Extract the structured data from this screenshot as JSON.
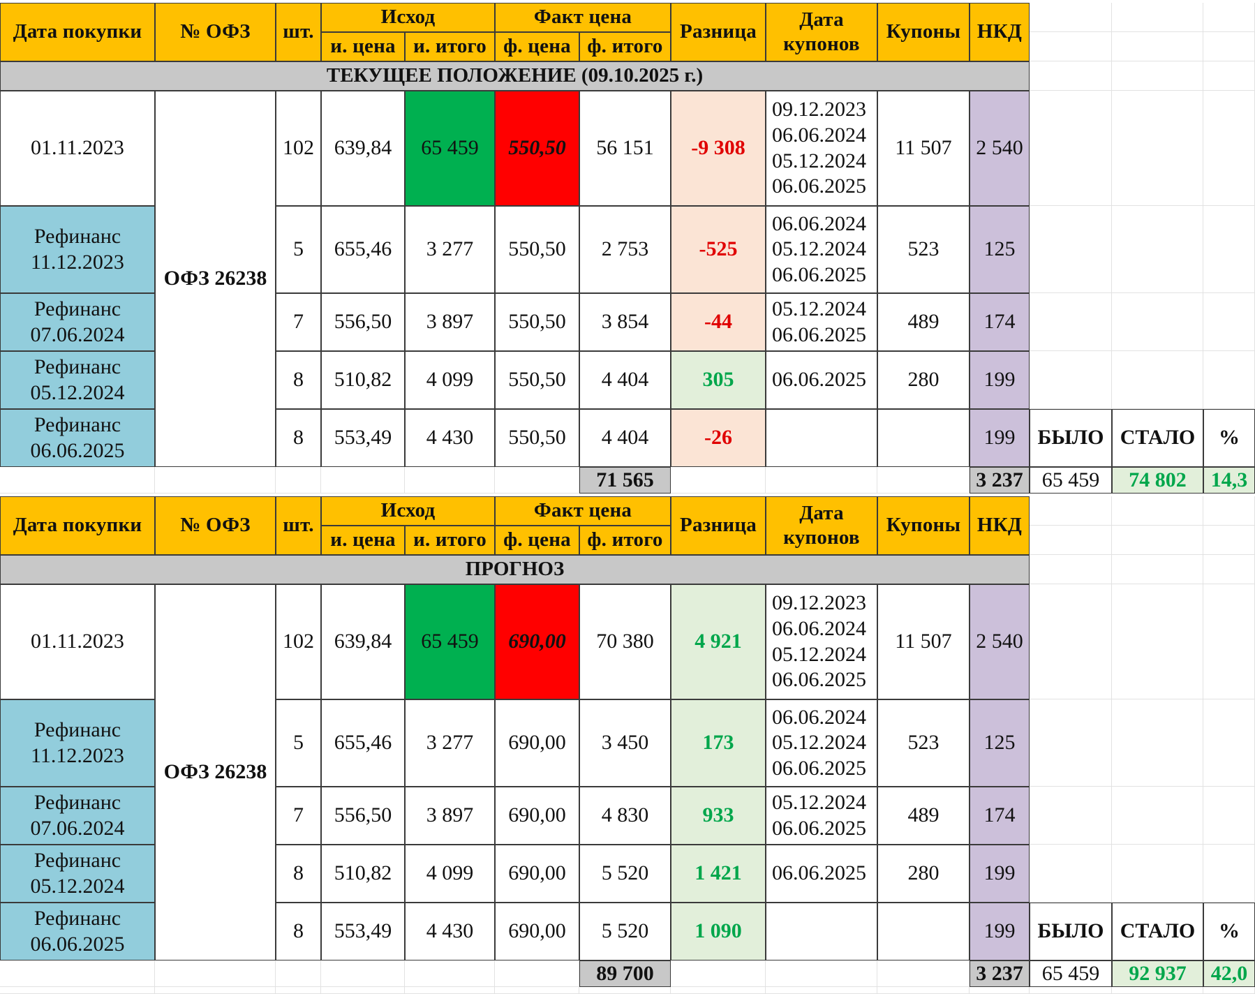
{
  "headers": {
    "date": "Дата покупки",
    "ofz": "№ ОФЗ",
    "qty": "шт.",
    "ish": "Исход",
    "fakt": "Факт цена",
    "raz": "Разница",
    "datakup": "Дата\nкупонов",
    "kup": "Купоны",
    "nkd": "НКД",
    "iprice": "и. цена",
    "itotal": "и. итого",
    "fprice": "ф. цена",
    "ftotal": "ф. итого"
  },
  "ofz_name": "ОФЗ 26238",
  "summary_labels": {
    "was": "БЫЛО",
    "now": "СТАЛО",
    "pct": "%"
  },
  "sections": [
    {
      "title": "ТЕКУЩЕЕ ПОЛОЖЕНИЕ (09.10.2025 г.)",
      "rows": [
        {
          "date": "01.11.2023",
          "qty": "102",
          "iprice": "639,84",
          "itotal": "65 459",
          "fprice": "550,50",
          "ftotal": "56 151",
          "diff": "-9 308",
          "coupons": "09.12.2023\n06.06.2024\n05.12.2024\n06.06.2025",
          "kup": "11 507",
          "nkd": "2 540"
        },
        {
          "date": "Рефинанс\n11.12.2023",
          "qty": "5",
          "iprice": "655,46",
          "itotal": "3 277",
          "fprice": "550,50",
          "ftotal": "2 753",
          "diff": "-525",
          "coupons": "06.06.2024\n05.12.2024\n06.06.2025",
          "kup": "523",
          "nkd": "125"
        },
        {
          "date": "Рефинанс\n07.06.2024",
          "qty": "7",
          "iprice": "556,50",
          "itotal": "3 897",
          "fprice": "550,50",
          "ftotal": "3 854",
          "diff": "-44",
          "coupons": "05.12.2024\n06.06.2025",
          "kup": "489",
          "nkd": "174"
        },
        {
          "date": "Рефинанс\n05.12.2024",
          "qty": "8",
          "iprice": "510,82",
          "itotal": "4 099",
          "fprice": "550,50",
          "ftotal": "4 404",
          "diff": "305",
          "coupons": "06.06.2025",
          "kup": "280",
          "nkd": "199"
        },
        {
          "date": "Рефинанс\n06.06.2025",
          "qty": "8",
          "iprice": "553,49",
          "itotal": "4 430",
          "fprice": "550,50",
          "ftotal": "4 404",
          "diff": "-26",
          "coupons": "",
          "kup": "",
          "nkd": "199"
        }
      ],
      "total": "71 565",
      "nkd_total": "3 237",
      "was": "65 459",
      "now": "74 802",
      "pct": "14,3"
    },
    {
      "title": "ПРОГНОЗ",
      "rows": [
        {
          "date": "01.11.2023",
          "qty": "102",
          "iprice": "639,84",
          "itotal": "65 459",
          "fprice": "690,00",
          "ftotal": "70 380",
          "diff": "4 921",
          "coupons": "09.12.2023\n06.06.2024\n05.12.2024\n06.06.2025",
          "kup": "11 507",
          "nkd": "2 540"
        },
        {
          "date": "Рефинанс\n11.12.2023",
          "qty": "5",
          "iprice": "655,46",
          "itotal": "3 277",
          "fprice": "690,00",
          "ftotal": "3 450",
          "diff": "173",
          "coupons": "06.06.2024\n05.12.2024\n06.06.2025",
          "kup": "523",
          "nkd": "125"
        },
        {
          "date": "Рефинанс\n07.06.2024",
          "qty": "7",
          "iprice": "556,50",
          "itotal": "3 897",
          "fprice": "690,00",
          "ftotal": "4 830",
          "diff": "933",
          "coupons": "05.12.2024\n06.06.2025",
          "kup": "489",
          "nkd": "174"
        },
        {
          "date": "Рефинанс\n05.12.2024",
          "qty": "8",
          "iprice": "510,82",
          "itotal": "4 099",
          "fprice": "690,00",
          "ftotal": "5 520",
          "diff": "1 421",
          "coupons": "06.06.2025",
          "kup": "280",
          "nkd": "199"
        },
        {
          "date": "Рефинанс\n06.06.2025",
          "qty": "8",
          "iprice": "553,49",
          "itotal": "4 430",
          "fprice": "690,00",
          "ftotal": "5 520",
          "diff": "1 090",
          "coupons": "",
          "kup": "",
          "nkd": "199"
        }
      ],
      "total": "89 700",
      "nkd_total": "3 237",
      "was": "65 459",
      "now": "92 937",
      "pct": "42,0"
    }
  ],
  "colors": {
    "header": "#ffc000",
    "title_bar": "#c8c8c8",
    "refinance": "#92cddc",
    "nkd": "#ccc0da",
    "buy_total": "#00b050",
    "current_price": "#ff0000",
    "negative": "#e00000",
    "positive": "#00a64b"
  }
}
